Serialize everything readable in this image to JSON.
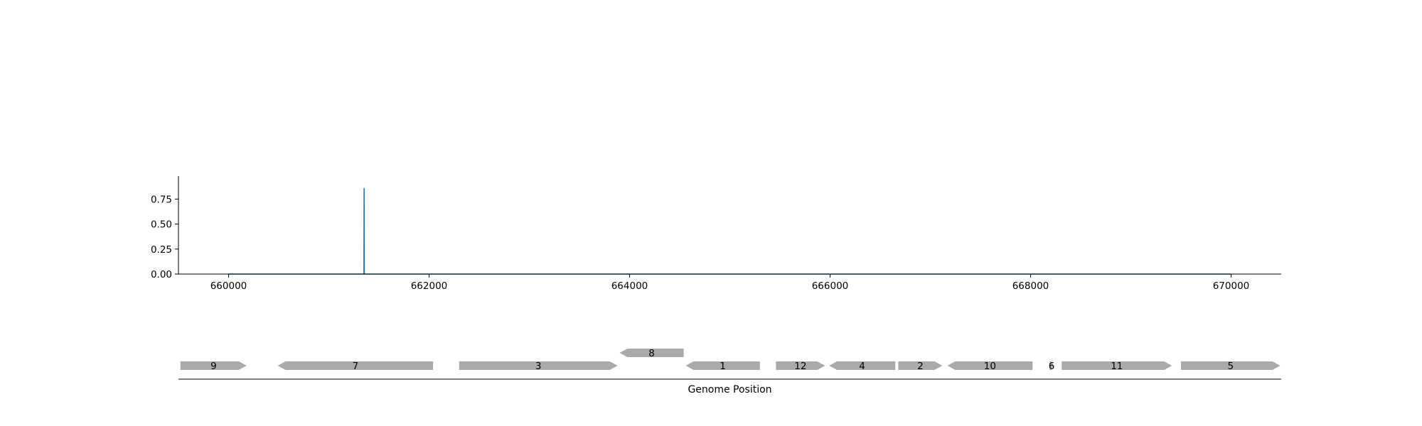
{
  "chart_data": [
    {
      "type": "line",
      "title": "",
      "xlabel": "",
      "ylabel": "",
      "xlim": [
        659500,
        670500
      ],
      "ylim": [
        0,
        0.98
      ],
      "grid": false,
      "color": "#1f77b4",
      "x_ticks": [
        660000,
        662000,
        664000,
        666000,
        668000,
        670000
      ],
      "x_tick_labels": [
        "660000",
        "662000",
        "664000",
        "666000",
        "668000",
        "670000"
      ],
      "y_ticks": [
        0,
        0.25,
        0.5,
        0.75
      ],
      "y_tick_labels": [
        "0.00",
        "0.25",
        "0.50",
        "0.75"
      ],
      "series": [
        {
          "x": [
            660000,
            661350,
            661352,
            661354,
            670000
          ],
          "y": [
            0,
            0,
            0.86,
            0,
            0
          ]
        }
      ]
    },
    {
      "type": "gene_track",
      "xlabel": "Genome Position",
      "xlim": [
        659500,
        670500
      ],
      "color": "#aaaaaa",
      "genes": [
        {
          "label": "9",
          "start": 659520,
          "end": 660180,
          "strand": "+",
          "row": 0
        },
        {
          "label": "7",
          "start": 660490,
          "end": 662040,
          "strand": "-",
          "row": 0
        },
        {
          "label": "3",
          "start": 662300,
          "end": 663880,
          "strand": "+",
          "row": 0
        },
        {
          "label": "8",
          "start": 663900,
          "end": 664540,
          "strand": "-",
          "row": 1
        },
        {
          "label": "1",
          "start": 664560,
          "end": 665300,
          "strand": "-",
          "row": 0
        },
        {
          "label": "12",
          "start": 665460,
          "end": 665950,
          "strand": "+",
          "row": 0
        },
        {
          "label": "4",
          "start": 665990,
          "end": 666650,
          "strand": "-",
          "row": 0
        },
        {
          "label": "2",
          "start": 666680,
          "end": 667120,
          "strand": "+",
          "row": 0
        },
        {
          "label": "10",
          "start": 667170,
          "end": 668020,
          "strand": "-",
          "row": 0
        },
        {
          "label": "6",
          "start": 668190,
          "end": 668230,
          "strand": "+",
          "row": 0
        },
        {
          "label": "11",
          "start": 668310,
          "end": 669410,
          "strand": "+",
          "row": 0
        },
        {
          "label": "5",
          "start": 669500,
          "end": 670490,
          "strand": "+",
          "row": 0
        }
      ]
    }
  ]
}
